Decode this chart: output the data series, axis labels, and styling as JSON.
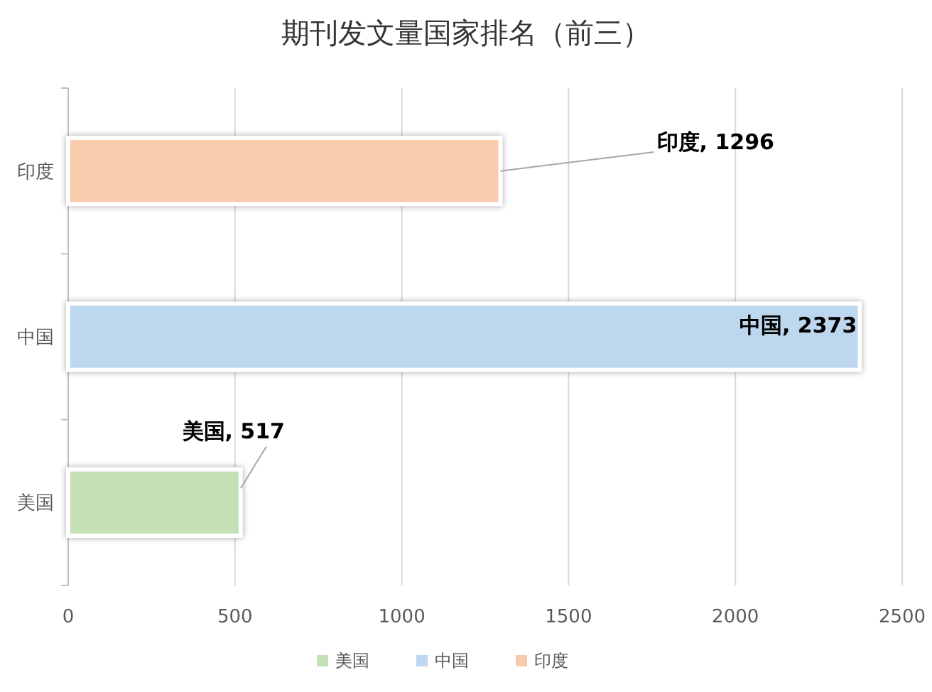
{
  "chart_data": {
    "type": "bar",
    "orientation": "horizontal",
    "title": "期刊发文量国家排名（前三）",
    "categories": [
      "印度",
      "中国",
      "美国"
    ],
    "series": [
      {
        "name": "美国",
        "color": "#c5e0b4",
        "values": [
          null,
          null,
          517
        ],
        "value_labels": [
          null,
          null,
          "美国, 517"
        ]
      },
      {
        "name": "中国",
        "color": "#bdd7ee",
        "values": [
          null,
          2373,
          null
        ],
        "value_labels": [
          null,
          "中国, 2373",
          null
        ]
      },
      {
        "name": "印度",
        "color": "#f8cbad",
        "values": [
          1296,
          null,
          null
        ],
        "value_labels": [
          "印度, 1296",
          null,
          null
        ]
      }
    ],
    "xlim": [
      0,
      2500
    ],
    "xticks": [
      0,
      500,
      1000,
      1500,
      2000,
      2500
    ],
    "grid": "x",
    "legend": "bottom"
  }
}
